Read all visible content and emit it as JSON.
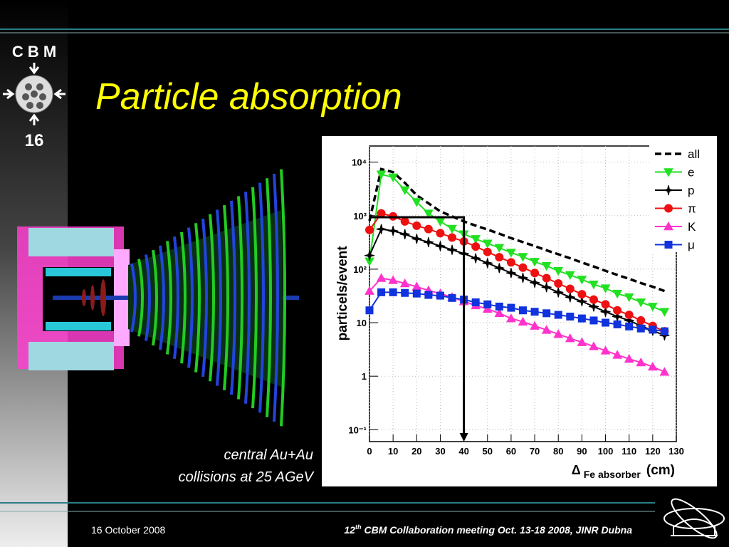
{
  "slide": {
    "logo": "C B M",
    "slide_number": "16",
    "title": "Particle absorption",
    "caption": [
      "central Au+Au",
      "collisions at 25 AGeV"
    ],
    "footer_date": "16 October 2008",
    "footer_event": {
      "number": "12",
      "suffix": "th",
      "text": "CBM  Collaboration meeting Oct. 13-18 2008, JINR Dubna"
    }
  },
  "chart_data": {
    "type": "line",
    "ylabel": "particels/event",
    "xlabel": {
      "symbol": "Δ",
      "sub": "Fe absorber",
      "unit": "(cm)"
    },
    "log_y": true,
    "grid": true,
    "legend": "top-right",
    "xlim": [
      0,
      130
    ],
    "xticks": [
      0,
      10,
      20,
      30,
      40,
      50,
      60,
      70,
      80,
      90,
      100,
      110,
      120,
      130
    ],
    "ylim": [
      0.06,
      20000
    ],
    "yticks": [
      {
        "value": 0.1,
        "label": "10⁻¹"
      },
      1,
      10,
      {
        "value": 100,
        "label": "10²"
      },
      {
        "value": 1000,
        "label": "10³"
      },
      {
        "value": 10000,
        "label": "10⁴"
      }
    ],
    "x": [
      0,
      5,
      10,
      15,
      20,
      25,
      30,
      35,
      40,
      45,
      50,
      55,
      60,
      65,
      70,
      75,
      80,
      85,
      90,
      95,
      100,
      105,
      110,
      115,
      120,
      125
    ],
    "series": [
      {
        "name": "all",
        "color": "#000000",
        "dash": true,
        "marker": "none",
        "values": [
          800,
          7400,
          6500,
          4100,
          2400,
          1700,
          1200,
          970,
          780,
          650,
          550,
          460,
          380,
          320,
          270,
          225,
          190,
          160,
          133,
          112,
          93,
          78,
          66,
          55,
          47,
          39
        ]
      },
      {
        "name": "e",
        "color": "#22e022",
        "dash": false,
        "marker": "triangle-down",
        "values": [
          140,
          5900,
          5200,
          3000,
          1800,
          1100,
          780,
          570,
          450,
          367,
          302,
          251,
          204,
          170,
          138,
          115,
          93,
          78,
          64,
          52,
          44,
          35,
          30,
          24,
          20,
          16
        ]
      },
      {
        "name": "p",
        "color": "#000000",
        "dash": false,
        "marker": "star",
        "values": [
          180,
          560,
          520,
          450,
          370,
          320,
          270,
          230,
          195,
          160,
          130,
          105,
          85,
          69,
          56,
          46,
          37,
          30,
          25,
          20,
          16,
          13,
          11,
          8.7,
          7.1,
          5.8
        ]
      },
      {
        "name": "π",
        "color": "#ee1111",
        "dash": false,
        "marker": "circle",
        "values": [
          540,
          1100,
          970,
          780,
          650,
          560,
          470,
          390,
          330,
          265,
          210,
          167,
          134,
          107,
          85,
          68,
          54,
          43,
          34,
          27,
          22,
          17,
          14,
          11,
          8.7,
          6.9
        ]
      },
      {
        "name": "K",
        "color": "#ff33cc",
        "dash": false,
        "marker": "triangle-up",
        "values": [
          39,
          68,
          62,
          54,
          47,
          40,
          35,
          30,
          25,
          21,
          18,
          15,
          12,
          10.4,
          8.7,
          7.3,
          6.1,
          5.1,
          4.3,
          3.6,
          3.0,
          2.5,
          2.1,
          1.8,
          1.5,
          1.2
        ]
      },
      {
        "name": "μ",
        "color": "#1133dd",
        "dash": false,
        "marker": "square",
        "values": [
          17,
          37,
          37,
          36,
          35,
          33,
          32,
          29,
          27,
          24,
          22,
          20,
          19,
          17,
          16,
          15,
          14,
          13,
          12,
          11,
          10,
          9.3,
          8.5,
          7.8,
          7.4,
          6.9
        ]
      }
    ]
  }
}
